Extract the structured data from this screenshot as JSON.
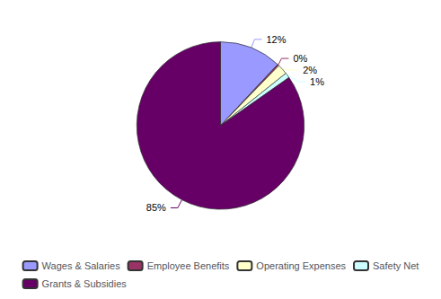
{
  "chart_data": {
    "type": "pie",
    "categories": [
      "Wages & Salaries",
      "Employee Benefits",
      "Operating Expenses",
      "Safety Net",
      "Grants & Subsidies"
    ],
    "values": [
      12,
      0.3,
      2,
      1,
      85
    ],
    "value_labels": [
      "12%",
      "0%",
      "2%",
      "1%",
      "85%"
    ],
    "colors": [
      "#9999FF",
      "#993366",
      "#FFFFCC",
      "#CCFFFF",
      "#660066"
    ],
    "data_labels": true,
    "legend": "bottom"
  }
}
